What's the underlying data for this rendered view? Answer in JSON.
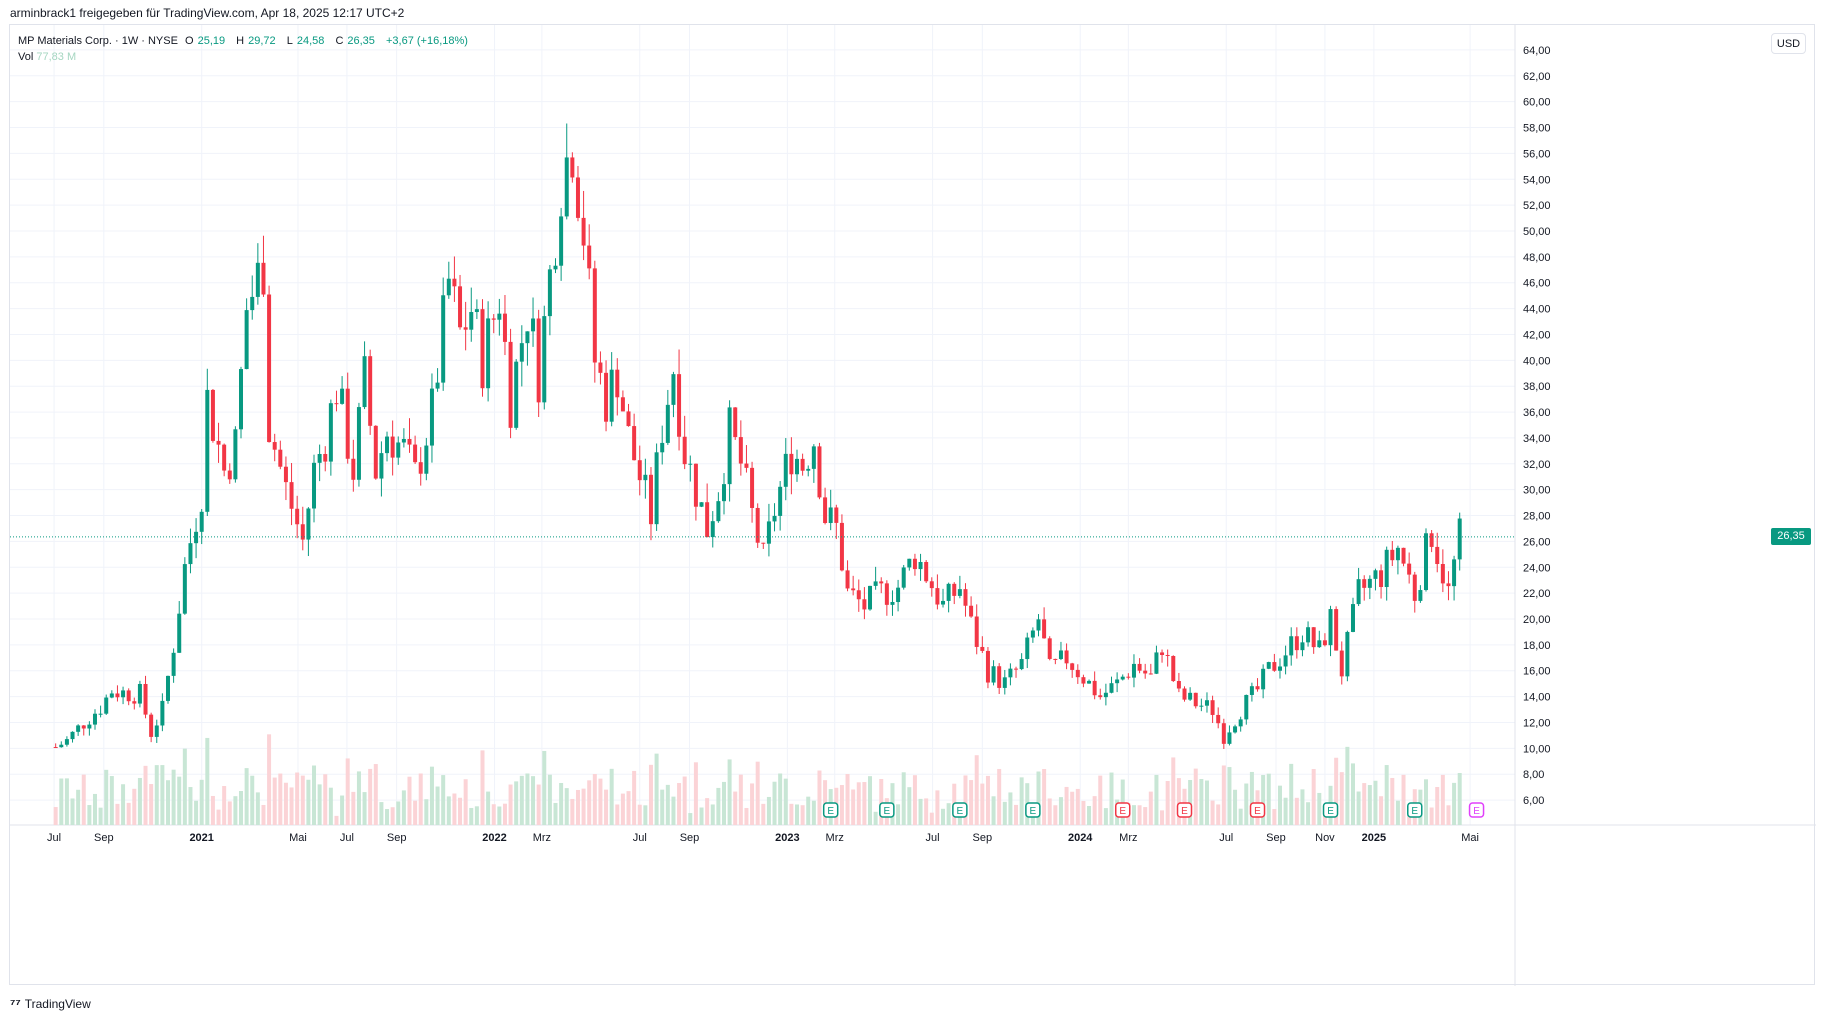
{
  "header": {
    "share_text": "arminbrack1 freigegeben für TradingView.com, Apr 18, 2025 12:17 UTC+2"
  },
  "legend": {
    "symbol": "MP Materials Corp. · 1W · NYSE",
    "o_label": "O",
    "o_value": "25,19",
    "h_label": "H",
    "h_value": "29,72",
    "l_label": "L",
    "l_value": "24,58",
    "c_label": "C",
    "c_value": "26,35",
    "change": "+3,67 (+16,18%)",
    "vol_label": "Vol",
    "vol_value": "77,83 M"
  },
  "currency": "USD",
  "last_price_label": "26,35",
  "footer": {
    "brand": "TradingView"
  },
  "colors": {
    "up": "#089981",
    "down": "#f23645",
    "vol_up": "#c8e6d5",
    "vol_down": "#fbd3d6",
    "earnings_up": "#089981",
    "earnings_down": "#f23645",
    "grid": "#f0f3fa",
    "last_price": "#089981"
  },
  "chart_data": {
    "type": "candlestick",
    "title": "MP Materials Corp. · 1W · NYSE",
    "y_unit": "USD",
    "ylim": [
      5,
      65
    ],
    "y_ticks": [
      "6,00",
      "8,00",
      "10,00",
      "12,00",
      "14,00",
      "16,00",
      "18,00",
      "20,00",
      "22,00",
      "24,00",
      "26,00",
      "28,00",
      "30,00",
      "32,00",
      "34,00",
      "36,00",
      "38,00",
      "40,00",
      "42,00",
      "44,00",
      "46,00",
      "48,00",
      "50,00",
      "52,00",
      "54,00",
      "56,00",
      "58,00",
      "60,00",
      "62,00",
      "64,00"
    ],
    "x_ticks": [
      {
        "label": "Jul",
        "bold": false,
        "date": "2020-07"
      },
      {
        "label": "Sep",
        "bold": false,
        "date": "2020-09"
      },
      {
        "label": "2021",
        "bold": true,
        "date": "2021-01"
      },
      {
        "label": "Mai",
        "bold": false,
        "date": "2021-05"
      },
      {
        "label": "Jul",
        "bold": false,
        "date": "2021-07"
      },
      {
        "label": "Sep",
        "bold": false,
        "date": "2021-09"
      },
      {
        "label": "2022",
        "bold": true,
        "date": "2022-01"
      },
      {
        "label": "Mrz",
        "bold": false,
        "date": "2022-03"
      },
      {
        "label": "Jul",
        "bold": false,
        "date": "2022-07"
      },
      {
        "label": "Sep",
        "bold": false,
        "date": "2022-09"
      },
      {
        "label": "2023",
        "bold": true,
        "date": "2023-01"
      },
      {
        "label": "Mrz",
        "bold": false,
        "date": "2023-03"
      },
      {
        "label": "Jul",
        "bold": false,
        "date": "2023-07"
      },
      {
        "label": "Sep",
        "bold": false,
        "date": "2023-09"
      },
      {
        "label": "2024",
        "bold": true,
        "date": "2024-01"
      },
      {
        "label": "Mrz",
        "bold": false,
        "date": "2024-03"
      },
      {
        "label": "Jul",
        "bold": false,
        "date": "2024-07"
      },
      {
        "label": "Sep",
        "bold": false,
        "date": "2024-09"
      },
      {
        "label": "Nov",
        "bold": false,
        "date": "2024-11"
      },
      {
        "label": "2025",
        "bold": true,
        "date": "2025-01"
      },
      {
        "label": "Mai",
        "bold": false,
        "date": "2025-05"
      }
    ],
    "last_price": 26.35,
    "close_path": [
      [
        "2020-07-03",
        10.1
      ],
      [
        "2020-07-17",
        10.6
      ],
      [
        "2020-08-07",
        12.0
      ],
      [
        "2020-08-28",
        13.2
      ],
      [
        "2020-09-11",
        14.5
      ],
      [
        "2020-09-25",
        14.3
      ],
      [
        "2020-10-16",
        14.2
      ],
      [
        "2020-10-30",
        11.2
      ],
      [
        "2020-11-13",
        13.0
      ],
      [
        "2020-11-27",
        18.0
      ],
      [
        "2020-12-11",
        24.0
      ],
      [
        "2021-01-01",
        30.0
      ],
      [
        "2021-01-08",
        37.0
      ],
      [
        "2021-01-29",
        31.5
      ],
      [
        "2021-02-12",
        33.5
      ],
      [
        "2021-02-26",
        44.0
      ],
      [
        "2021-03-19",
        47.5
      ],
      [
        "2021-03-26",
        35.0
      ],
      [
        "2021-04-16",
        30.0
      ],
      [
        "2021-05-07",
        26.0
      ],
      [
        "2021-05-21",
        31.5
      ],
      [
        "2021-06-04",
        34.0
      ],
      [
        "2021-06-18",
        38.0
      ],
      [
        "2021-07-09",
        31.5
      ],
      [
        "2021-07-23",
        38.5
      ],
      [
        "2021-08-06",
        31.5
      ],
      [
        "2021-08-20",
        34.5
      ],
      [
        "2021-09-10",
        33.0
      ],
      [
        "2021-09-24",
        31.0
      ],
      [
        "2021-10-15",
        36.0
      ],
      [
        "2021-11-05",
        46.0
      ],
      [
        "2021-11-19",
        42.0
      ],
      [
        "2021-12-03",
        44.0
      ],
      [
        "2021-12-17",
        40.0
      ],
      [
        "2022-01-07",
        45.0
      ],
      [
        "2022-01-21",
        37.0
      ],
      [
        "2022-02-11",
        44.0
      ],
      [
        "2022-02-25",
        39.0
      ],
      [
        "2022-03-11",
        46.5
      ],
      [
        "2022-03-25",
        54.0
      ],
      [
        "2022-04-08",
        57.0
      ],
      [
        "2022-04-22",
        50.0
      ],
      [
        "2022-05-06",
        40.0
      ],
      [
        "2022-05-20",
        37.0
      ],
      [
        "2022-06-03",
        39.0
      ],
      [
        "2022-06-17",
        34.0
      ],
      [
        "2022-07-01",
        31.0
      ],
      [
        "2022-07-15",
        28.0
      ],
      [
        "2022-07-29",
        35.0
      ],
      [
        "2022-08-12",
        39.5
      ],
      [
        "2022-08-26",
        33.0
      ],
      [
        "2022-09-09",
        30.0
      ],
      [
        "2022-09-23",
        27.0
      ],
      [
        "2022-10-07",
        30.0
      ],
      [
        "2022-10-21",
        34.5
      ],
      [
        "2022-11-04",
        32.0
      ],
      [
        "2022-11-18",
        28.0
      ],
      [
        "2022-12-02",
        24.5
      ],
      [
        "2022-12-16",
        28.5
      ],
      [
        "2023-01-06",
        33.0
      ],
      [
        "2023-01-20",
        32.0
      ],
      [
        "2023-02-03",
        34.0
      ],
      [
        "2023-02-17",
        28.0
      ],
      [
        "2023-03-03",
        27.0
      ],
      [
        "2023-03-17",
        22.0
      ],
      [
        "2023-04-07",
        21.0
      ],
      [
        "2023-04-28",
        22.0
      ],
      [
        "2023-05-19",
        22.5
      ],
      [
        "2023-06-09",
        25.0
      ],
      [
        "2023-06-23",
        23.5
      ],
      [
        "2023-07-14",
        21.0
      ],
      [
        "2023-08-04",
        22.5
      ],
      [
        "2023-08-18",
        19.5
      ],
      [
        "2023-09-08",
        16.0
      ],
      [
        "2023-09-29",
        15.0
      ],
      [
        "2023-10-20",
        16.5
      ],
      [
        "2023-11-10",
        20.0
      ],
      [
        "2023-11-24",
        16.0
      ],
      [
        "2023-12-15",
        17.0
      ],
      [
        "2024-01-05",
        15.5
      ],
      [
        "2024-01-26",
        14.0
      ],
      [
        "2024-02-16",
        15.0
      ],
      [
        "2024-03-08",
        16.5
      ],
      [
        "2024-03-29",
        15.5
      ],
      [
        "2024-04-12",
        18.0
      ],
      [
        "2024-05-03",
        14.0
      ],
      [
        "2024-05-24",
        13.5
      ],
      [
        "2024-06-14",
        13.0
      ],
      [
        "2024-06-28",
        11.0
      ],
      [
        "2024-07-19",
        13.0
      ],
      [
        "2024-08-09",
        14.5
      ],
      [
        "2024-08-23",
        16.0
      ],
      [
        "2024-09-13",
        17.5
      ],
      [
        "2024-10-04",
        19.0
      ],
      [
        "2024-10-25",
        17.5
      ],
      [
        "2024-11-08",
        20.0
      ],
      [
        "2024-11-22",
        16.0
      ],
      [
        "2024-12-13",
        22.0
      ],
      [
        "2025-01-10",
        23.5
      ],
      [
        "2025-01-31",
        25.5
      ],
      [
        "2025-02-21",
        22.0
      ],
      [
        "2025-03-14",
        26.8
      ],
      [
        "2025-04-04",
        22.0
      ],
      [
        "2025-04-18",
        26.35
      ]
    ],
    "earnings_markers": [
      {
        "date": "2023-02-24",
        "type": "E",
        "result": "up"
      },
      {
        "date": "2023-05-05",
        "type": "E",
        "result": "up"
      },
      {
        "date": "2023-08-04",
        "type": "E",
        "result": "up"
      },
      {
        "date": "2023-11-03",
        "type": "E",
        "result": "up"
      },
      {
        "date": "2024-02-23",
        "type": "E",
        "result": "down"
      },
      {
        "date": "2024-05-10",
        "type": "E",
        "result": "down"
      },
      {
        "date": "2024-08-09",
        "type": "E",
        "result": "down"
      },
      {
        "date": "2024-11-08",
        "type": "E",
        "result": "up"
      },
      {
        "date": "2025-02-21",
        "type": "E",
        "result": "up"
      },
      {
        "date": "2025-05-09",
        "type": "E",
        "result": "upcoming"
      }
    ]
  }
}
